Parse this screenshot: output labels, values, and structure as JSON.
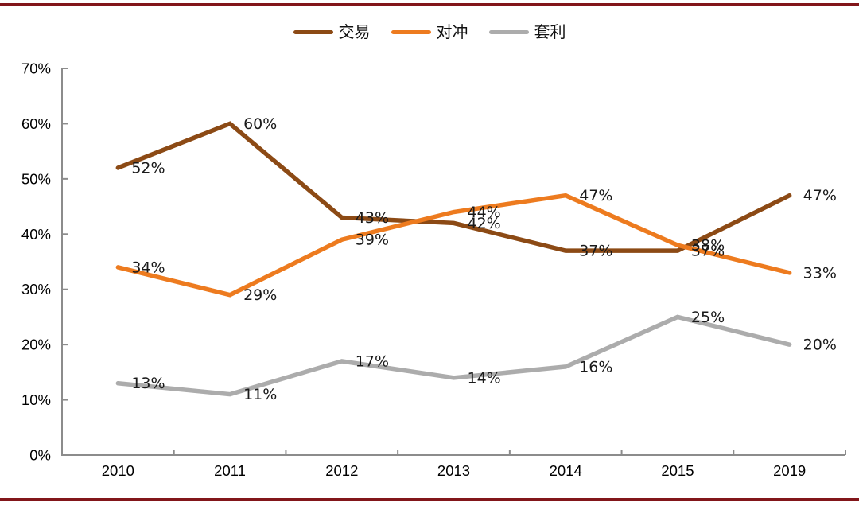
{
  "frame": {
    "background": "#FFFFFF",
    "top_rule_color": "#82161A",
    "bottom_rule_color": "#82161A"
  },
  "legend": {
    "items": [
      {
        "label": "交易",
        "color": "#8C4A15"
      },
      {
        "label": "对冲",
        "color": "#ED7B1F"
      },
      {
        "label": "套利",
        "color": "#ACACAC"
      }
    ]
  },
  "chart_data": {
    "type": "line",
    "title": "",
    "xlabel": "",
    "ylabel": "",
    "categories": [
      "2010",
      "2011",
      "2012",
      "2013",
      "2014",
      "2015",
      "2019"
    ],
    "series": [
      {
        "name": "交易",
        "color": "#8C4A15",
        "values": [
          52,
          60,
          43,
          42,
          37,
          37,
          47
        ]
      },
      {
        "name": "对冲",
        "color": "#ED7B1F",
        "values": [
          34,
          29,
          39,
          44,
          47,
          38,
          33
        ]
      },
      {
        "name": "套利",
        "color": "#ACACAC",
        "values": [
          13,
          11,
          17,
          14,
          16,
          25,
          20
        ]
      }
    ],
    "data_label_suffix": "%",
    "data_labels": [
      "52%",
      "60%",
      "43%",
      "42%",
      "37%",
      "37%",
      "47%",
      "34%",
      "29%",
      "39%",
      "44%",
      "47%",
      "38%",
      "33%",
      "13%",
      "11%",
      "17%",
      "14%",
      "16%",
      "25%",
      "20%"
    ],
    "ylim": [
      0,
      70
    ],
    "ytick_step": 10,
    "ytick_labels": [
      "0%",
      "10%",
      "20%",
      "30%",
      "40%",
      "50%",
      "60%",
      "70%"
    ],
    "grid": false,
    "legend_position": "top",
    "axis_color": "#8C8C8C",
    "tick_label_color": "#000000",
    "data_label_color": "#1A1A1A"
  }
}
